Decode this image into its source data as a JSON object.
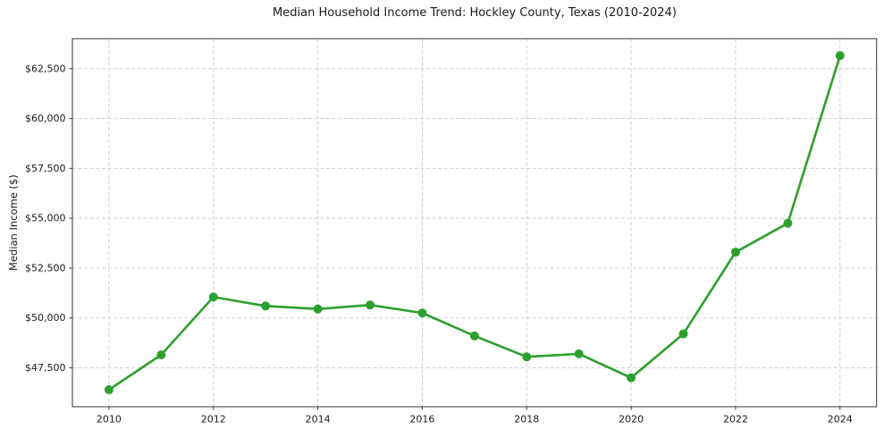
{
  "chart_data": {
    "type": "line",
    "title": "Median Household Income Trend: Hockley County, Texas (2010-2024)",
    "xlabel": "",
    "ylabel": "Median Income ($)",
    "x": [
      2010,
      2011,
      2012,
      2013,
      2014,
      2015,
      2016,
      2017,
      2018,
      2019,
      2020,
      2021,
      2022,
      2023,
      2024
    ],
    "values": [
      46400,
      48150,
      51050,
      50600,
      50450,
      50650,
      50250,
      49100,
      48050,
      48200,
      47000,
      49200,
      53300,
      54750,
      63150
    ],
    "x_ticks": [
      2010,
      2012,
      2014,
      2016,
      2018,
      2020,
      2022,
      2024
    ],
    "x_tick_labels": [
      "2010",
      "2012",
      "2014",
      "2016",
      "2018",
      "2020",
      "2022",
      "2024"
    ],
    "y_ticks": [
      47500,
      50000,
      52500,
      55000,
      57500,
      60000,
      62500
    ],
    "y_tick_labels": [
      "$47,500",
      "$50,000",
      "$52,500",
      "$55,000",
      "$57,500",
      "$60,000",
      "$62,500"
    ],
    "xlim": [
      2009.3,
      2024.7
    ],
    "ylim": [
      45550,
      64000
    ],
    "grid": true,
    "grid_style": "dashed",
    "legend": false,
    "marker": "circle",
    "colors": {
      "line": "#2ca02c",
      "marker": "#2ca02c",
      "grid": "#cccccc",
      "spine": "#333333",
      "text": "#1a1a1a",
      "background": "#ffffff"
    }
  }
}
